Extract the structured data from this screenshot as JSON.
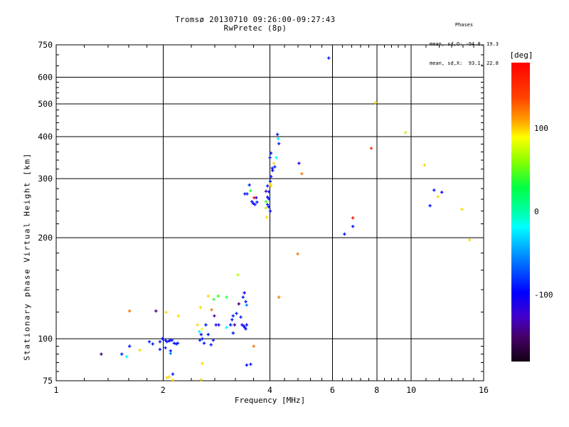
{
  "header": {
    "title_line1": "Tromsø 20130710 09:26:00-09:27:43",
    "title_line2": "RwPretec (8p)",
    "phases_title": "Phases",
    "phases_line1": "mean, sd,O: -94.8, 19.3",
    "phases_line2": "mean, sd,X:  93.1, 22.8"
  },
  "chart_data": {
    "type": "scatter",
    "title": "Tromsø 20130710 09:26:00-09:27:43",
    "subtitle": "RwPretec (8p)",
    "xlabel": "Frequency [MHz]",
    "ylabel": "Stationary phase Virtual Height [km]",
    "x_scale": "log",
    "x_range": [
      1,
      16
    ],
    "y_scale": "log",
    "y_range": [
      75,
      750
    ],
    "x_major_ticks": [
      1,
      2,
      4,
      6,
      8,
      10,
      16
    ],
    "x_minor_ticks": [
      1.2,
      1.4,
      1.6,
      1.8,
      2.4,
      2.8,
      3.2,
      3.6,
      4.4,
      4.8,
      5.2,
      5.6,
      6.4,
      6.8,
      7.2,
      7.6,
      8.4,
      8.8,
      9.2,
      9.6,
      11,
      12,
      13,
      14,
      15
    ],
    "x_gridlines": [
      2,
      4,
      6,
      8,
      10
    ],
    "y_major_ticks": [
      75,
      100,
      200,
      300,
      400,
      500,
      600,
      750
    ],
    "y_minor_ticks": [
      80,
      85,
      90,
      95,
      120,
      140,
      160,
      180,
      220,
      240,
      260,
      280,
      320,
      340,
      360,
      380,
      420,
      440,
      460,
      480,
      520,
      540,
      560,
      580,
      650,
      700
    ],
    "y_gridlines": [
      100,
      200,
      300,
      400,
      500,
      600
    ],
    "grid": true,
    "marker": "plus",
    "colorbar": {
      "label": "[deg]",
      "min": -180,
      "max": 180,
      "ticks": [
        100,
        0,
        -100
      ],
      "stops": [
        [
          180,
          "#ff0000"
        ],
        [
          137,
          "#ff4400"
        ],
        [
          108,
          "#ffaa00"
        ],
        [
          90,
          "#ffff00"
        ],
        [
          61,
          "#88ff00"
        ],
        [
          29,
          "#00ff44"
        ],
        [
          0,
          "#00ffaa"
        ],
        [
          -18,
          "#00ffff"
        ],
        [
          -54,
          "#0088ff"
        ],
        [
          -97,
          "#0000ff"
        ],
        [
          -126,
          "#4400cc"
        ],
        [
          -151,
          "#440066"
        ],
        [
          -180,
          "#140014"
        ]
      ]
    },
    "points": [
      [
        4.2,
        406,
        -90
      ],
      [
        4.22,
        394,
        -15
      ],
      [
        4.24,
        381,
        -90
      ],
      [
        4.03,
        357,
        -90
      ],
      [
        4.0,
        346,
        -90
      ],
      [
        4.17,
        346,
        -15
      ],
      [
        4.1,
        333,
        98
      ],
      [
        4.13,
        325,
        -90
      ],
      [
        4.06,
        322,
        -90
      ],
      [
        4.07,
        317,
        -105
      ],
      [
        4.03,
        304,
        -90
      ],
      [
        4.01,
        294,
        -90
      ],
      [
        3.94,
        285,
        -90
      ],
      [
        4.01,
        289,
        98
      ],
      [
        4.03,
        285,
        98
      ],
      [
        3.9,
        275,
        -135
      ],
      [
        3.97,
        274,
        -90
      ],
      [
        3.94,
        264,
        -90
      ],
      [
        3.97,
        261,
        -90
      ],
      [
        3.9,
        256,
        40
      ],
      [
        3.94,
        251,
        -90
      ],
      [
        3.97,
        247,
        -105
      ],
      [
        3.89,
        245,
        72
      ],
      [
        4.01,
        240,
        -90
      ],
      [
        3.92,
        230,
        98
      ],
      [
        3.5,
        287,
        -90
      ],
      [
        3.53,
        276,
        40
      ],
      [
        3.4,
        270,
        -90
      ],
      [
        3.45,
        270,
        -90
      ],
      [
        3.61,
        263,
        170
      ],
      [
        3.66,
        263,
        -105
      ],
      [
        3.56,
        256,
        -90
      ],
      [
        3.59,
        253,
        -105
      ],
      [
        3.63,
        251,
        -90
      ],
      [
        3.68,
        255,
        -90
      ],
      [
        4.83,
        333,
        -105
      ],
      [
        4.92,
        310,
        122
      ],
      [
        6.85,
        229,
        170
      ],
      [
        6.85,
        216,
        -90
      ],
      [
        6.49,
        205,
        -90
      ],
      [
        4.79,
        179,
        122
      ],
      [
        4.24,
        133,
        122
      ],
      [
        5.86,
        685,
        -90
      ],
      [
        7.94,
        504,
        98
      ],
      [
        9.64,
        411,
        72
      ],
      [
        7.72,
        369,
        150
      ],
      [
        10.9,
        329,
        98
      ],
      [
        11.6,
        277,
        -90
      ],
      [
        12.2,
        273,
        -105
      ],
      [
        11.9,
        265,
        98
      ],
      [
        11.3,
        249,
        -90
      ],
      [
        13.9,
        243,
        98
      ],
      [
        14.6,
        197,
        98
      ],
      [
        3.25,
        155,
        72
      ],
      [
        2.68,
        134,
        98
      ],
      [
        2.78,
        131,
        40
      ],
      [
        2.86,
        134,
        40
      ],
      [
        3.02,
        133,
        40
      ],
      [
        3.39,
        137,
        -105
      ],
      [
        3.36,
        133,
        -90
      ],
      [
        3.42,
        129,
        -90
      ],
      [
        3.27,
        127,
        -150
      ],
      [
        3.44,
        126,
        -55
      ],
      [
        2.55,
        124,
        98
      ],
      [
        2.74,
        122,
        122
      ],
      [
        2.79,
        117,
        -135
      ],
      [
        3.15,
        117,
        -90
      ],
      [
        3.22,
        119,
        -90
      ],
      [
        3.31,
        116,
        -90
      ],
      [
        3.13,
        114,
        -90
      ],
      [
        1.61,
        121,
        122
      ],
      [
        1.91,
        121,
        -135
      ],
      [
        2.04,
        120,
        98
      ],
      [
        2.21,
        117,
        98
      ],
      [
        2.5,
        110,
        98
      ],
      [
        2.57,
        107,
        90
      ],
      [
        2.64,
        110,
        -90
      ],
      [
        2.82,
        110,
        -120
      ],
      [
        2.87,
        110,
        -90
      ],
      [
        3.02,
        108,
        -15
      ],
      [
        3.1,
        110,
        -90
      ],
      [
        3.18,
        110,
        -135
      ],
      [
        3.34,
        110,
        -105
      ],
      [
        3.38,
        109,
        -105
      ],
      [
        3.4,
        108,
        -90
      ],
      [
        3.44,
        110,
        -90
      ],
      [
        3.42,
        107,
        -90
      ],
      [
        3.15,
        104,
        -90
      ],
      [
        2.53,
        105,
        -15
      ],
      [
        2.56,
        103,
        -90
      ],
      [
        2.58,
        100,
        -90
      ],
      [
        2.68,
        103,
        -90
      ],
      [
        2.77,
        99,
        -90
      ],
      [
        2.54,
        99,
        -90
      ],
      [
        2.61,
        97,
        -90
      ],
      [
        2.73,
        96,
        -90
      ],
      [
        3.6,
        95,
        122
      ],
      [
        1.34,
        90,
        -150
      ],
      [
        1.53,
        90,
        -90
      ],
      [
        1.58,
        88.5,
        -15
      ],
      [
        1.61,
        95,
        -90
      ],
      [
        1.72,
        92.5,
        98
      ],
      [
        1.83,
        98,
        -90
      ],
      [
        1.87,
        96.5,
        -90
      ],
      [
        1.96,
        98,
        -90
      ],
      [
        1.99,
        100,
        -90
      ],
      [
        2.03,
        99,
        -105
      ],
      [
        2.05,
        98,
        -90
      ],
      [
        2.08,
        98.5,
        -105
      ],
      [
        2.1,
        99,
        -90
      ],
      [
        2.12,
        99,
        -90
      ],
      [
        2.15,
        97,
        -90
      ],
      [
        2.18,
        96.5,
        -90
      ],
      [
        2.2,
        97,
        -90
      ],
      [
        1.96,
        93,
        -90
      ],
      [
        2.03,
        94,
        -90
      ],
      [
        2.1,
        92,
        -90
      ],
      [
        2.1,
        90.5,
        -55
      ],
      [
        2.13,
        78.5,
        -90
      ],
      [
        2.05,
        76.5,
        98
      ],
      [
        2.13,
        75.3,
        98
      ],
      [
        2.58,
        84.5,
        98
      ],
      [
        3.44,
        83.5,
        -90
      ],
      [
        3.53,
        84,
        -90
      ],
      [
        2.56,
        75.5,
        98
      ],
      [
        2.08,
        77,
        98
      ]
    ]
  }
}
